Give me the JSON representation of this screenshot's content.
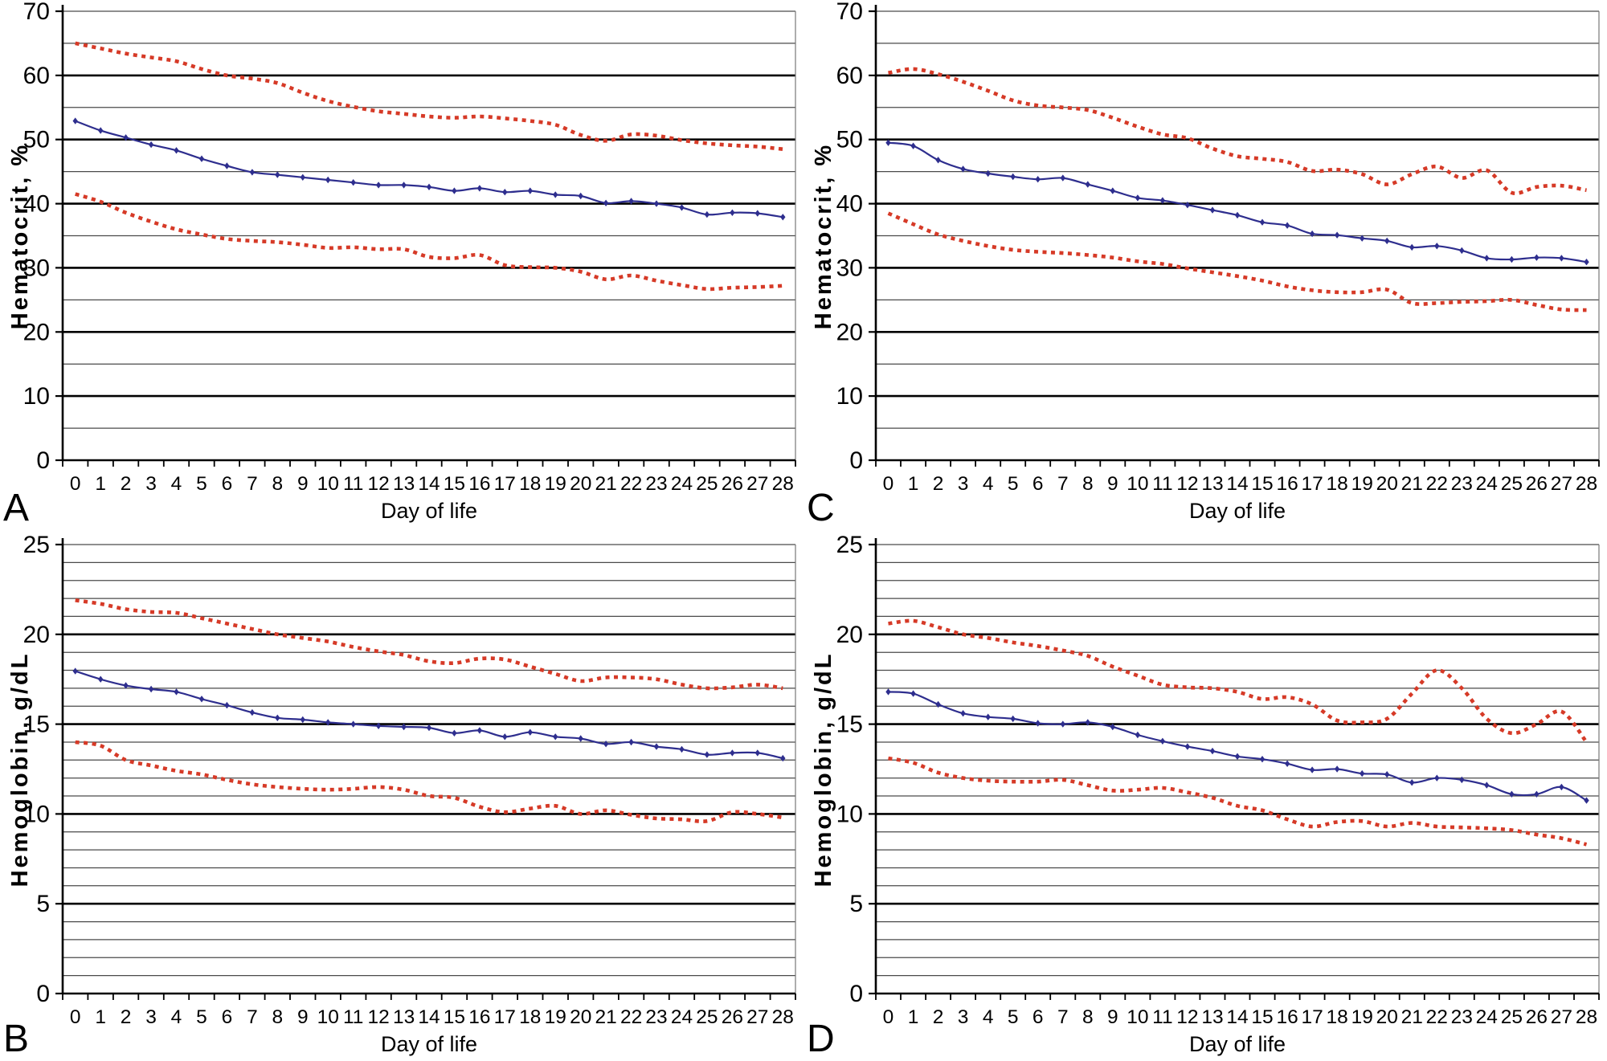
{
  "figure": {
    "colors": {
      "mean_line": "#2e2e8e",
      "limit_line": "#d63a27",
      "grid_major": "#000000",
      "grid_minor": "#4a4a4a"
    },
    "x_axis_label": "Day of life",
    "x_labels": [
      "0",
      "1",
      "2",
      "3",
      "4",
      "5",
      "6",
      "7",
      "8",
      "9",
      "10",
      "11",
      "12",
      "13",
      "14",
      "15",
      "16",
      "17",
      "18",
      "19",
      "20",
      "21",
      "22",
      "23",
      "24",
      "25",
      "26",
      "27",
      "28"
    ]
  },
  "chart_data": [
    {
      "type": "line",
      "panel_letter": "A",
      "ylabel": "Hematocrit, %",
      "xlabel": "Day of life",
      "ylim": [
        0,
        70
      ],
      "ytick_step": 10,
      "ygrid_step": 5,
      "ytick_labels": [
        "0",
        "10",
        "20",
        "30",
        "40",
        "50",
        "60",
        "70"
      ],
      "x": [
        0,
        1,
        2,
        3,
        4,
        5,
        6,
        7,
        8,
        9,
        10,
        11,
        12,
        13,
        14,
        15,
        16,
        17,
        18,
        19,
        20,
        21,
        22,
        23,
        24,
        25,
        26,
        27,
        28
      ],
      "grid": true,
      "legend": "none",
      "series": [
        {
          "id": "upper_dotted_limit",
          "style": "dotted",
          "values": [
            65.0,
            64.2,
            63.4,
            62.8,
            62.2,
            61.0,
            60.0,
            59.5,
            58.8,
            57.3,
            56.0,
            55.1,
            54.4,
            54.0,
            53.6,
            53.4,
            53.6,
            53.3,
            52.9,
            52.3,
            50.7,
            49.8,
            50.8,
            50.6,
            49.9,
            49.4,
            49.1,
            48.9,
            48.5
          ]
        },
        {
          "id": "lower_dotted_limit",
          "style": "dotted",
          "values": [
            41.5,
            40.3,
            38.6,
            37.2,
            36.0,
            35.2,
            34.5,
            34.2,
            34.0,
            33.6,
            33.1,
            33.2,
            32.9,
            32.9,
            31.7,
            31.5,
            32.0,
            30.4,
            30.1,
            30.0,
            29.4,
            28.2,
            28.8,
            28.0,
            27.3,
            26.7,
            26.9,
            27.0,
            27.2
          ]
        },
        {
          "id": "mean_solid",
          "style": "solid-diamond",
          "values": [
            52.9,
            51.4,
            50.3,
            49.2,
            48.3,
            47.0,
            45.9,
            44.9,
            44.5,
            44.1,
            43.7,
            43.3,
            42.9,
            42.9,
            42.6,
            42.0,
            42.4,
            41.8,
            42.0,
            41.4,
            41.2,
            40.1,
            40.4,
            40.0,
            39.4,
            38.3,
            38.6,
            38.5,
            37.9
          ]
        }
      ]
    },
    {
      "type": "line",
      "panel_letter": "C",
      "ylabel": "Hematocrit, %",
      "xlabel": "Day of life",
      "ylim": [
        0,
        70
      ],
      "ytick_step": 10,
      "ygrid_step": 5,
      "ytick_labels": [
        "0",
        "10",
        "20",
        "30",
        "40",
        "50",
        "60",
        "70"
      ],
      "x": [
        0,
        1,
        2,
        3,
        4,
        5,
        6,
        7,
        8,
        9,
        10,
        11,
        12,
        13,
        14,
        15,
        16,
        17,
        18,
        19,
        20,
        21,
        22,
        23,
        24,
        25,
        26,
        27,
        28
      ],
      "grid": true,
      "legend": "none",
      "series": [
        {
          "id": "upper_dotted_limit",
          "style": "dotted",
          "values": [
            60.4,
            61.0,
            60.2,
            59.0,
            57.6,
            56.1,
            55.3,
            55.0,
            54.6,
            53.4,
            52.0,
            50.8,
            50.2,
            48.6,
            47.4,
            47.0,
            46.5,
            45.1,
            45.3,
            44.6,
            43.0,
            44.6,
            45.8,
            44.0,
            45.2,
            41.7,
            42.6,
            42.8,
            42.1
          ]
        },
        {
          "id": "lower_dotted_limit",
          "style": "dotted",
          "values": [
            38.5,
            36.8,
            35.2,
            34.2,
            33.4,
            32.8,
            32.5,
            32.3,
            32.0,
            31.6,
            31.0,
            30.6,
            29.9,
            29.3,
            28.7,
            28.0,
            27.1,
            26.5,
            26.2,
            26.2,
            26.6,
            24.5,
            24.5,
            24.7,
            24.8,
            25.0,
            24.2,
            23.5,
            23.4
          ]
        },
        {
          "id": "mean_solid",
          "style": "solid-diamond",
          "values": [
            49.5,
            49.0,
            46.8,
            45.4,
            44.7,
            44.2,
            43.8,
            44.0,
            43.0,
            42.0,
            40.9,
            40.5,
            39.8,
            39.0,
            38.2,
            37.1,
            36.6,
            35.3,
            35.1,
            34.6,
            34.2,
            33.2,
            33.4,
            32.7,
            31.5,
            31.3,
            31.6,
            31.5,
            30.9
          ]
        }
      ]
    },
    {
      "type": "line",
      "panel_letter": "B",
      "ylabel": "Hemoglobin, g/dL",
      "xlabel": "Day of life",
      "ylim": [
        0,
        25
      ],
      "ytick_step": 5,
      "ygrid_step": 1,
      "ytick_labels": [
        "0",
        "5",
        "10",
        "15",
        "20",
        "25"
      ],
      "x": [
        0,
        1,
        2,
        3,
        4,
        5,
        6,
        7,
        8,
        9,
        10,
        11,
        12,
        13,
        14,
        15,
        16,
        17,
        18,
        19,
        20,
        21,
        22,
        23,
        24,
        25,
        26,
        27,
        28
      ],
      "grid": true,
      "legend": "none",
      "series": [
        {
          "id": "upper_dotted_limit",
          "style": "dotted",
          "values": [
            21.9,
            21.7,
            21.4,
            21.25,
            21.2,
            20.9,
            20.6,
            20.3,
            20.0,
            19.8,
            19.6,
            19.3,
            19.05,
            18.85,
            18.5,
            18.4,
            18.65,
            18.6,
            18.2,
            17.8,
            17.4,
            17.6,
            17.6,
            17.5,
            17.2,
            17.0,
            17.05,
            17.2,
            17.0
          ]
        },
        {
          "id": "lower_dotted_limit",
          "style": "dotted",
          "values": [
            14.0,
            13.8,
            13.0,
            12.7,
            12.4,
            12.2,
            11.9,
            11.65,
            11.5,
            11.4,
            11.35,
            11.4,
            11.5,
            11.35,
            11.0,
            10.9,
            10.4,
            10.1,
            10.3,
            10.45,
            10.0,
            10.2,
            9.95,
            9.75,
            9.7,
            9.6,
            10.1,
            10.0,
            9.8
          ]
        },
        {
          "id": "mean_solid",
          "style": "solid-diamond",
          "values": [
            17.95,
            17.5,
            17.15,
            16.95,
            16.8,
            16.4,
            16.05,
            15.65,
            15.35,
            15.25,
            15.1,
            15.0,
            14.9,
            14.85,
            14.8,
            14.5,
            14.65,
            14.3,
            14.55,
            14.3,
            14.2,
            13.9,
            14.0,
            13.75,
            13.6,
            13.3,
            13.4,
            13.4,
            13.1
          ]
        }
      ]
    },
    {
      "type": "line",
      "panel_letter": "D",
      "ylabel": "Hemoglobin, g/dL",
      "xlabel": "Day of life",
      "ylim": [
        0,
        25
      ],
      "ytick_step": 5,
      "ygrid_step": 1,
      "ytick_labels": [
        "0",
        "5",
        "10",
        "15",
        "20",
        "25"
      ],
      "x": [
        0,
        1,
        2,
        3,
        4,
        5,
        6,
        7,
        8,
        9,
        10,
        11,
        12,
        13,
        14,
        15,
        16,
        17,
        18,
        19,
        20,
        21,
        22,
        23,
        24,
        25,
        26,
        27,
        28
      ],
      "grid": true,
      "legend": "none",
      "series": [
        {
          "id": "upper_dotted_limit",
          "style": "dotted",
          "values": [
            20.6,
            20.75,
            20.4,
            20.0,
            19.8,
            19.55,
            19.35,
            19.1,
            18.8,
            18.2,
            17.7,
            17.2,
            17.05,
            17.0,
            16.8,
            16.4,
            16.5,
            16.1,
            15.2,
            15.1,
            15.3,
            16.7,
            18.0,
            17.0,
            15.3,
            14.5,
            15.0,
            15.7,
            14.0
          ]
        },
        {
          "id": "lower_dotted_limit",
          "style": "dotted",
          "values": [
            13.1,
            12.85,
            12.3,
            12.0,
            11.85,
            11.8,
            11.8,
            11.9,
            11.6,
            11.3,
            11.35,
            11.45,
            11.2,
            10.9,
            10.45,
            10.2,
            9.7,
            9.3,
            9.55,
            9.6,
            9.3,
            9.5,
            9.3,
            9.25,
            9.2,
            9.1,
            8.85,
            8.65,
            8.3
          ]
        },
        {
          "id": "mean_solid",
          "style": "solid-diamond",
          "values": [
            16.8,
            16.7,
            16.1,
            15.6,
            15.4,
            15.3,
            15.05,
            15.0,
            15.1,
            14.85,
            14.4,
            14.05,
            13.75,
            13.5,
            13.2,
            13.05,
            12.8,
            12.45,
            12.5,
            12.25,
            12.2,
            11.75,
            12.0,
            11.9,
            11.6,
            11.1,
            11.1,
            11.5,
            10.75
          ]
        }
      ]
    }
  ]
}
